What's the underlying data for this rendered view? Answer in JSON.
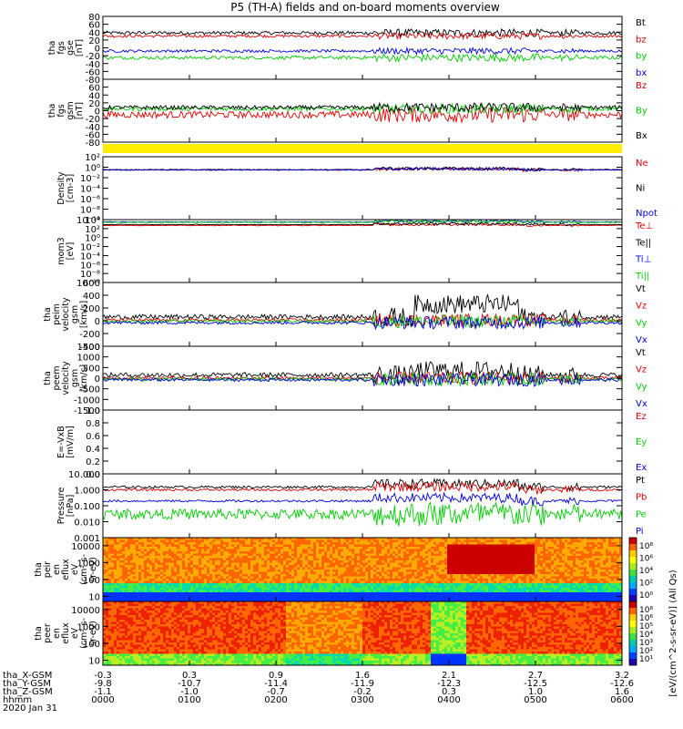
{
  "title": "P5 (TH-A) fields and on-board moments overview",
  "chart_data": [
    {
      "type": "line",
      "ylabel": [
        "tha",
        "fgs",
        "gse",
        "[nT]"
      ],
      "ylim": [
        -80,
        80
      ],
      "yticks": [
        80,
        60,
        40,
        20,
        0,
        -20,
        -40,
        -60,
        -80
      ],
      "ytick_labels": [
        "80",
        "60",
        "40",
        "20",
        "0",
        "-20",
        "-40",
        "-60",
        "-80"
      ],
      "series": [
        {
          "name": "Bt",
          "color": "#000000",
          "baseline": 38,
          "jitter": 5
        },
        {
          "name": "bz",
          "color": "#e00000",
          "baseline": 30,
          "jitter": 4
        },
        {
          "name": "by",
          "color": "#00cc00",
          "baseline": -25,
          "jitter": 5
        },
        {
          "name": "bx",
          "color": "#0000dd",
          "baseline": -8,
          "jitter": 4
        }
      ]
    },
    {
      "type": "line",
      "ylabel": [
        "tha",
        "fgs",
        "gsm",
        "[nT]"
      ],
      "ylim": [
        -80,
        80
      ],
      "yticks": [
        60,
        40,
        20,
        0,
        -20,
        -40,
        -60,
        -80
      ],
      "ytick_labels": [
        "60",
        "40",
        "20",
        "0",
        "-20",
        "-40",
        "-60",
        "-80"
      ],
      "series": [
        {
          "name": "Bz",
          "color": "#e00000",
          "baseline": -10,
          "jitter": 10
        },
        {
          "name": "By",
          "color": "#00cc00",
          "baseline": 5,
          "jitter": 6
        },
        {
          "name": "Bx",
          "color": "#000000",
          "baseline": 8,
          "jitter": 6
        }
      ]
    },
    {
      "type": "line",
      "ylabel": [
        "Density",
        "[cm-3]"
      ],
      "scale": "log",
      "ylim": [
        1e-10,
        100
      ],
      "yticks": [
        100,
        1,
        0.01,
        0.0001,
        1e-06,
        1e-08,
        1e-10
      ],
      "ytick_labels": [
        "10²",
        "10⁰",
        "10⁻²",
        "10⁻⁴",
        "10⁻⁶",
        "10⁻⁸",
        "10⁻¹⁰"
      ],
      "series": [
        {
          "name": "Ne",
          "color": "#e00000",
          "baseline": 0.3
        },
        {
          "name": "Ni",
          "color": "#000000",
          "baseline": 0.35
        },
        {
          "name": "Npot",
          "color": "#0000dd",
          "baseline": 0.3
        }
      ]
    },
    {
      "type": "line",
      "ylabel": [
        "mom3",
        "[eV]"
      ],
      "scale": "log",
      "ylim": [
        1e-10,
        10000
      ],
      "yticks": [
        10000,
        100,
        1,
        0.01,
        0.0001,
        1e-06,
        1e-08,
        1e-10
      ],
      "ytick_labels": [
        "10⁴",
        "10²",
        "10⁰",
        "10⁻²",
        "10⁻⁴",
        "10⁻⁶",
        "10⁻⁸",
        "10⁻¹⁰"
      ],
      "series": [
        {
          "name": "Te⊥",
          "color": "#e00000",
          "baseline": 500
        },
        {
          "name": "Te||",
          "color": "#000000",
          "baseline": 800
        },
        {
          "name": "Ti⊥",
          "color": "#0000dd",
          "baseline": 3000
        },
        {
          "name": "Ti||",
          "color": "#00cc00",
          "baseline": 2500
        }
      ]
    },
    {
      "type": "line",
      "ylabel": [
        "tha",
        "peim",
        "velocity",
        "gsm",
        "[km/s]"
      ],
      "ylim": [
        -400,
        600
      ],
      "yticks": [
        600,
        400,
        200,
        0,
        -200,
        -400
      ],
      "ytick_labels": [
        "600",
        "400",
        "200",
        "0",
        "-200",
        "-400"
      ],
      "series": [
        {
          "name": "Vt",
          "color": "#000000",
          "baseline": 60
        },
        {
          "name": "Vz",
          "color": "#e00000",
          "baseline": 10
        },
        {
          "name": "Vy",
          "color": "#00cc00",
          "baseline": -10
        },
        {
          "name": "Vx",
          "color": "#0000dd",
          "baseline": -30
        }
      ]
    },
    {
      "type": "line",
      "ylabel": [
        "tha",
        "peem",
        "velocity",
        "gsm",
        "[km/s]"
      ],
      "ylim": [
        -1500,
        1500
      ],
      "yticks": [
        1500,
        1000,
        500,
        0,
        -500,
        -1000,
        -1500
      ],
      "ytick_labels": [
        "1500",
        "1000",
        "500",
        "0",
        "-500",
        "-1000",
        "-1500"
      ],
      "series": [
        {
          "name": "Vt",
          "color": "#000000",
          "baseline": 150
        },
        {
          "name": "Vz",
          "color": "#e00000",
          "baseline": 0
        },
        {
          "name": "Vy",
          "color": "#00cc00",
          "baseline": -50
        },
        {
          "name": "Vx",
          "color": "#0000dd",
          "baseline": -80
        }
      ]
    },
    {
      "type": "line",
      "ylabel": [
        "E=-VxB",
        "[mV/m]"
      ],
      "ylim": [
        0,
        1.0
      ],
      "yticks": [
        1.0,
        0.8,
        0.6,
        0.4,
        0.2,
        0.0
      ],
      "ytick_labels": [
        "1.0",
        "0.8",
        "0.6",
        "0.4",
        "0.2",
        "0.0"
      ],
      "series": [
        {
          "name": "Ez",
          "color": "#e00000"
        },
        {
          "name": "Ey",
          "color": "#00cc00"
        },
        {
          "name": "Ex",
          "color": "#0000dd"
        }
      ]
    },
    {
      "type": "line",
      "ylabel": [
        "Pressure",
        "[nPa]"
      ],
      "scale": "log",
      "ylim": [
        0.001,
        10
      ],
      "yticks": [
        10,
        1,
        0.1,
        0.01,
        0.001
      ],
      "ytick_labels": [
        "10.000",
        "1.000",
        "0.100",
        "0.010",
        "0.001"
      ],
      "series": [
        {
          "name": "Pt",
          "color": "#000000",
          "baseline": 1.5
        },
        {
          "name": "Pb",
          "color": "#e00000",
          "baseline": 1.0
        },
        {
          "name": "Pe",
          "color": "#00cc00",
          "baseline": 0.03
        },
        {
          "name": "Pi",
          "color": "#0000dd",
          "baseline": 0.2
        }
      ]
    },
    {
      "type": "heatmap",
      "ylabel": [
        "tha",
        "peir",
        "en",
        "eflux",
        "eV",
        "(cm²-s-",
        "sr-eV)"
      ],
      "scale": "log",
      "ylim": [
        5,
        30000
      ],
      "yticks": [
        10000,
        1000,
        100,
        10
      ],
      "ytick_labels": [
        "10000",
        "1000",
        "100",
        "10"
      ]
    },
    {
      "type": "heatmap",
      "ylabel": [
        "tha",
        "peer",
        "en",
        "eflux",
        "eV",
        "(cm²-s-",
        "sr-eV)"
      ],
      "scale": "log",
      "ylim": [
        5,
        30000
      ],
      "yticks": [
        10000,
        1000,
        100,
        10
      ],
      "ytick_labels": [
        "10000",
        "1000",
        "100",
        "10"
      ]
    }
  ],
  "colorbar": {
    "label": "[eV/(cm^2-s-sr-eV)] (All Qs)",
    "ticks": [
      "10⁸",
      "10⁶",
      "10⁴",
      "10²",
      "10⁰"
    ],
    "ticks2": [
      "10⁸",
      "10⁶",
      "10⁵",
      "10⁴",
      "10³",
      "10²",
      "10¹"
    ]
  },
  "xaxis": {
    "row_labels": [
      "tha_X-GSM",
      "tha_Y-GSM",
      "tha_Z-GSM",
      "hhmm",
      "2020 Jan 31"
    ],
    "x_gsm": [
      "-0.3",
      "0.3",
      "0.9",
      "1.6",
      "2.1",
      "2.7",
      "3.2"
    ],
    "y_gsm": [
      "-9.8",
      "-10.7",
      "-11.4",
      "-11.9",
      "-12.3",
      "-12.5",
      "-12.6"
    ],
    "z_gsm": [
      "-1.1",
      "-1.0",
      "-0.7",
      "-0.2",
      "0.3",
      "1.0",
      "1.6"
    ],
    "hhmm": [
      "0000",
      "0100",
      "0200",
      "0300",
      "0400",
      "0500",
      "0600"
    ]
  },
  "colors": {
    "status_bar": "#ffee00",
    "black": "#000000",
    "red": "#e00000",
    "green": "#00cc00",
    "blue": "#0000dd"
  }
}
